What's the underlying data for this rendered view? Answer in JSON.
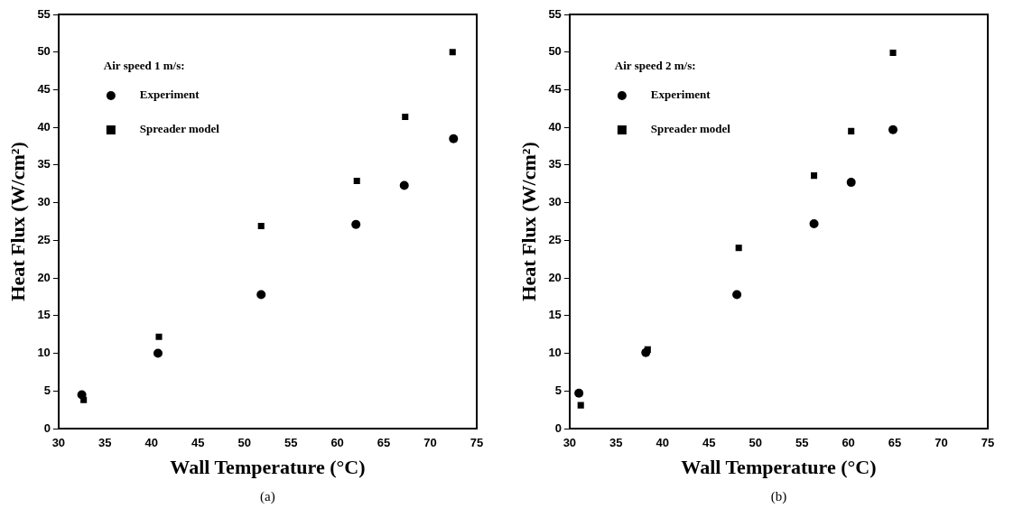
{
  "chart_data": [
    {
      "type": "scatter",
      "xlabel": "Wall Temperature (°C)",
      "ylabel": "Heat Flux (W/cm²)",
      "legend_title": "Air speed 1 m/s:",
      "legend": "top left",
      "grid": false,
      "annotations": [
        "(a)"
      ],
      "xlim": [
        30,
        75
      ],
      "xticks": [
        30,
        35,
        40,
        45,
        50,
        55,
        60,
        65,
        70,
        75
      ],
      "ylim": [
        0,
        55
      ],
      "yticks": [
        0,
        5,
        10,
        15,
        20,
        25,
        30,
        35,
        40,
        45,
        50,
        55
      ],
      "series": [
        {
          "name": "Experiment",
          "color": "#000000",
          "marker": "circle",
          "x": [
            32.5,
            40.7,
            51.8,
            62,
            67.2,
            72.5
          ],
          "values": [
            4.5,
            10,
            17.8,
            27.1,
            32.3,
            38.5
          ]
        },
        {
          "name": "Spreader model",
          "color": "#000000",
          "marker": "square",
          "x": [
            32.7,
            40.8,
            51.8,
            62.1,
            67.3,
            72.4
          ],
          "values": [
            3.8,
            12.2,
            26.9,
            32.9,
            41.4,
            50
          ]
        }
      ]
    },
    {
      "type": "scatter",
      "xlabel": "Wall Temperature (°C)",
      "ylabel": "Heat Flux (W/cm²)",
      "legend_title": "Air speed 2 m/s:",
      "legend": "top left",
      "grid": false,
      "annotations": [
        "(b)"
      ],
      "xlim": [
        30,
        75
      ],
      "xticks": [
        30,
        35,
        40,
        45,
        50,
        55,
        60,
        65,
        70,
        75
      ],
      "ylim": [
        0,
        55
      ],
      "yticks": [
        0,
        5,
        10,
        15,
        20,
        25,
        30,
        35,
        40,
        45,
        50,
        55
      ],
      "series": [
        {
          "name": "Experiment",
          "color": "#000000",
          "marker": "circle",
          "x": [
            31,
            38.2,
            48,
            56.3,
            60.3,
            64.8
          ],
          "values": [
            4.7,
            10.1,
            17.8,
            27.2,
            32.7,
            39.7
          ]
        },
        {
          "name": "Spreader model",
          "color": "#000000",
          "marker": "square",
          "x": [
            31.2,
            38.4,
            48.2,
            56.3,
            60.3,
            64.8
          ],
          "values": [
            3.1,
            10.5,
            24,
            33.6,
            39.5,
            49.9
          ]
        }
      ]
    }
  ]
}
